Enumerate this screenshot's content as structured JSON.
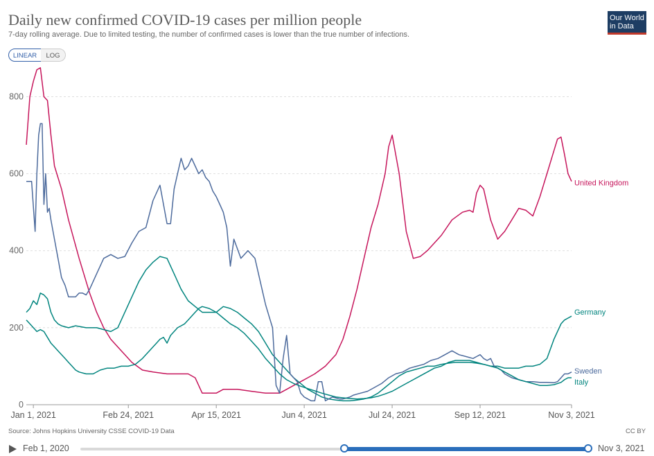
{
  "header": {
    "title": "Daily new confirmed COVID-19 cases per million people",
    "subtitle": "7-day rolling average. Due to limited testing, the number of confirmed cases is lower than the true number of infections.",
    "logo_line1": "Our World",
    "logo_line2": "in Data"
  },
  "controls": {
    "linear_label": "LINEAR",
    "log_label": "LOG",
    "selected": "LINEAR"
  },
  "footer": {
    "source": "Source: Johns Hopkins University CSSE COVID-19 Data",
    "license": "CC BY"
  },
  "timeline": {
    "start_label": "Feb 1, 2020",
    "end_label": "Nov 3, 2021"
  },
  "chart_data": {
    "type": "line",
    "title": "Daily new confirmed COVID-19 cases per million people",
    "xlabel": "",
    "ylabel": "",
    "x_unit": "days since Dec 28, 2020",
    "xlim": [
      0,
      310
    ],
    "ylim": [
      0,
      880
    ],
    "yticks": [
      0,
      200,
      400,
      600,
      800
    ],
    "xticks": [
      {
        "label": "Jan 1, 2021",
        "x": 4
      },
      {
        "label": "Feb 24, 2021",
        "x": 58
      },
      {
        "label": "Apr 15, 2021",
        "x": 108
      },
      {
        "label": "Jun 4, 2021",
        "x": 158
      },
      {
        "label": "Jul 24, 2021",
        "x": 208
      },
      {
        "label": "Sep 12, 2021",
        "x": 258
      },
      {
        "label": "Nov 3, 2021",
        "x": 310
      }
    ],
    "grid": true,
    "series": [
      {
        "name": "United Kingdom",
        "color": "#c6155b",
        "x": [
          0,
          2,
          4,
          6,
          8,
          10,
          12,
          14,
          16,
          20,
          24,
          30,
          36,
          40,
          44,
          48,
          52,
          56,
          60,
          66,
          72,
          80,
          86,
          92,
          96,
          100,
          104,
          108,
          112,
          120,
          128,
          136,
          140,
          144,
          148,
          152,
          156,
          160,
          164,
          170,
          176,
          180,
          184,
          188,
          192,
          196,
          200,
          204,
          206,
          208,
          212,
          216,
          220,
          224,
          228,
          232,
          236,
          242,
          248,
          252,
          254,
          256,
          258,
          260,
          264,
          268,
          272,
          276,
          280,
          284,
          288,
          292,
          296,
          300,
          302,
          304,
          306,
          308,
          310
        ],
        "y": [
          675,
          800,
          840,
          870,
          875,
          800,
          790,
          700,
          620,
          560,
          480,
          380,
          290,
          240,
          200,
          170,
          150,
          130,
          110,
          90,
          85,
          80,
          80,
          80,
          70,
          30,
          30,
          30,
          40,
          40,
          35,
          30,
          30,
          30,
          40,
          50,
          60,
          70,
          80,
          100,
          130,
          170,
          230,
          300,
          380,
          460,
          520,
          600,
          670,
          700,
          600,
          450,
          380,
          385,
          400,
          420,
          440,
          480,
          500,
          505,
          500,
          550,
          570,
          560,
          480,
          430,
          450,
          480,
          510,
          505,
          490,
          540,
          600,
          660,
          690,
          695,
          650,
          600,
          580
        ]
      },
      {
        "name": "Germany",
        "color": "#00847e",
        "x": [
          0,
          2,
          4,
          6,
          8,
          10,
          12,
          14,
          16,
          18,
          20,
          24,
          28,
          34,
          40,
          48,
          52,
          56,
          60,
          64,
          68,
          72,
          76,
          80,
          84,
          88,
          92,
          96,
          100,
          104,
          108,
          112,
          116,
          120,
          124,
          128,
          132,
          136,
          140,
          144,
          148,
          152,
          156,
          160,
          164,
          168,
          172,
          176,
          180,
          184,
          188,
          192,
          196,
          200,
          204,
          208,
          212,
          216,
          220,
          224,
          228,
          232,
          236,
          240,
          244,
          248,
          252,
          256,
          260,
          264,
          268,
          272,
          276,
          280,
          284,
          288,
          292,
          296,
          300,
          304,
          306,
          308,
          310
        ],
        "y": [
          240,
          250,
          270,
          260,
          290,
          285,
          275,
          240,
          220,
          210,
          205,
          200,
          205,
          200,
          200,
          190,
          200,
          240,
          280,
          320,
          350,
          370,
          385,
          380,
          340,
          300,
          270,
          255,
          240,
          240,
          240,
          255,
          250,
          240,
          225,
          210,
          190,
          160,
          130,
          110,
          90,
          70,
          55,
          40,
          30,
          20,
          15,
          12,
          10,
          10,
          12,
          15,
          20,
          30,
          45,
          60,
          75,
          85,
          90,
          95,
          100,
          100,
          105,
          108,
          110,
          110,
          110,
          108,
          105,
          100,
          100,
          95,
          95,
          95,
          100,
          100,
          105,
          120,
          170,
          210,
          220,
          225,
          230
        ]
      },
      {
        "name": "Sweden",
        "color": "#4c6a9c",
        "x": [
          0,
          3,
          5,
          6,
          7,
          8,
          9,
          10,
          11,
          12,
          13,
          14,
          16,
          18,
          20,
          22,
          24,
          26,
          28,
          30,
          32,
          34,
          36,
          40,
          44,
          48,
          52,
          56,
          60,
          64,
          68,
          72,
          76,
          80,
          82,
          84,
          86,
          88,
          90,
          92,
          94,
          96,
          98,
          100,
          102,
          104,
          106,
          108,
          110,
          112,
          114,
          116,
          118,
          122,
          126,
          130,
          134,
          136,
          138,
          140,
          142,
          144,
          146,
          148,
          150,
          152,
          154,
          156,
          158,
          160,
          162,
          164,
          166,
          168,
          170,
          174,
          178,
          180,
          184,
          186,
          190,
          194,
          198,
          202,
          206,
          210,
          214,
          218,
          222,
          226,
          230,
          234,
          238,
          242,
          246,
          250,
          254,
          256,
          258,
          260,
          262,
          264,
          266,
          268,
          270,
          272,
          274,
          276,
          280,
          284,
          288,
          292,
          296,
          300,
          302,
          304,
          306,
          308,
          310
        ],
        "y": [
          580,
          580,
          450,
          600,
          700,
          730,
          730,
          520,
          600,
          500,
          510,
          480,
          430,
          380,
          330,
          310,
          280,
          280,
          280,
          290,
          290,
          285,
          300,
          340,
          380,
          390,
          380,
          385,
          420,
          450,
          460,
          530,
          570,
          470,
          470,
          560,
          600,
          640,
          610,
          620,
          640,
          620,
          600,
          610,
          590,
          580,
          555,
          540,
          520,
          500,
          460,
          360,
          430,
          380,
          400,
          380,
          300,
          260,
          230,
          200,
          50,
          30,
          120,
          180,
          80,
          70,
          60,
          30,
          20,
          15,
          10,
          10,
          60,
          60,
          10,
          20,
          15,
          15,
          20,
          25,
          30,
          35,
          45,
          55,
          70,
          80,
          85,
          95,
          100,
          105,
          115,
          120,
          130,
          140,
          130,
          125,
          120,
          125,
          130,
          120,
          115,
          120,
          100,
          95,
          90,
          80,
          75,
          70,
          65,
          60,
          60,
          58,
          58,
          57,
          60,
          70,
          80,
          80,
          85
        ]
      },
      {
        "name": "Italy",
        "color": "#00847e",
        "x": [
          0,
          2,
          4,
          6,
          8,
          10,
          12,
          14,
          16,
          18,
          20,
          22,
          24,
          26,
          28,
          30,
          34,
          38,
          42,
          46,
          50,
          54,
          58,
          62,
          66,
          68,
          70,
          72,
          74,
          76,
          78,
          80,
          82,
          84,
          86,
          88,
          90,
          92,
          94,
          96,
          98,
          100,
          104,
          108,
          112,
          116,
          120,
          124,
          128,
          132,
          136,
          140,
          144,
          148,
          152,
          156,
          160,
          164,
          168,
          172,
          176,
          180,
          184,
          188,
          192,
          196,
          200,
          204,
          208,
          212,
          216,
          220,
          224,
          228,
          232,
          236,
          240,
          244,
          248,
          252,
          256,
          260,
          264,
          268,
          272,
          276,
          280,
          284,
          288,
          292,
          296,
          300,
          304,
          306,
          308,
          310
        ],
        "y": [
          220,
          210,
          200,
          190,
          195,
          190,
          175,
          160,
          150,
          140,
          130,
          120,
          110,
          100,
          90,
          85,
          80,
          80,
          90,
          95,
          95,
          100,
          100,
          105,
          120,
          130,
          140,
          150,
          160,
          170,
          175,
          160,
          180,
          190,
          200,
          205,
          210,
          220,
          230,
          240,
          250,
          255,
          250,
          240,
          225,
          210,
          200,
          185,
          165,
          145,
          120,
          100,
          80,
          65,
          55,
          48,
          42,
          36,
          30,
          25,
          20,
          18,
          16,
          15,
          16,
          18,
          22,
          28,
          35,
          45,
          55,
          65,
          75,
          85,
          95,
          100,
          110,
          115,
          115,
          115,
          110,
          105,
          100,
          95,
          85,
          75,
          65,
          60,
          55,
          50,
          50,
          52,
          58,
          65,
          70,
          70
        ]
      }
    ]
  }
}
